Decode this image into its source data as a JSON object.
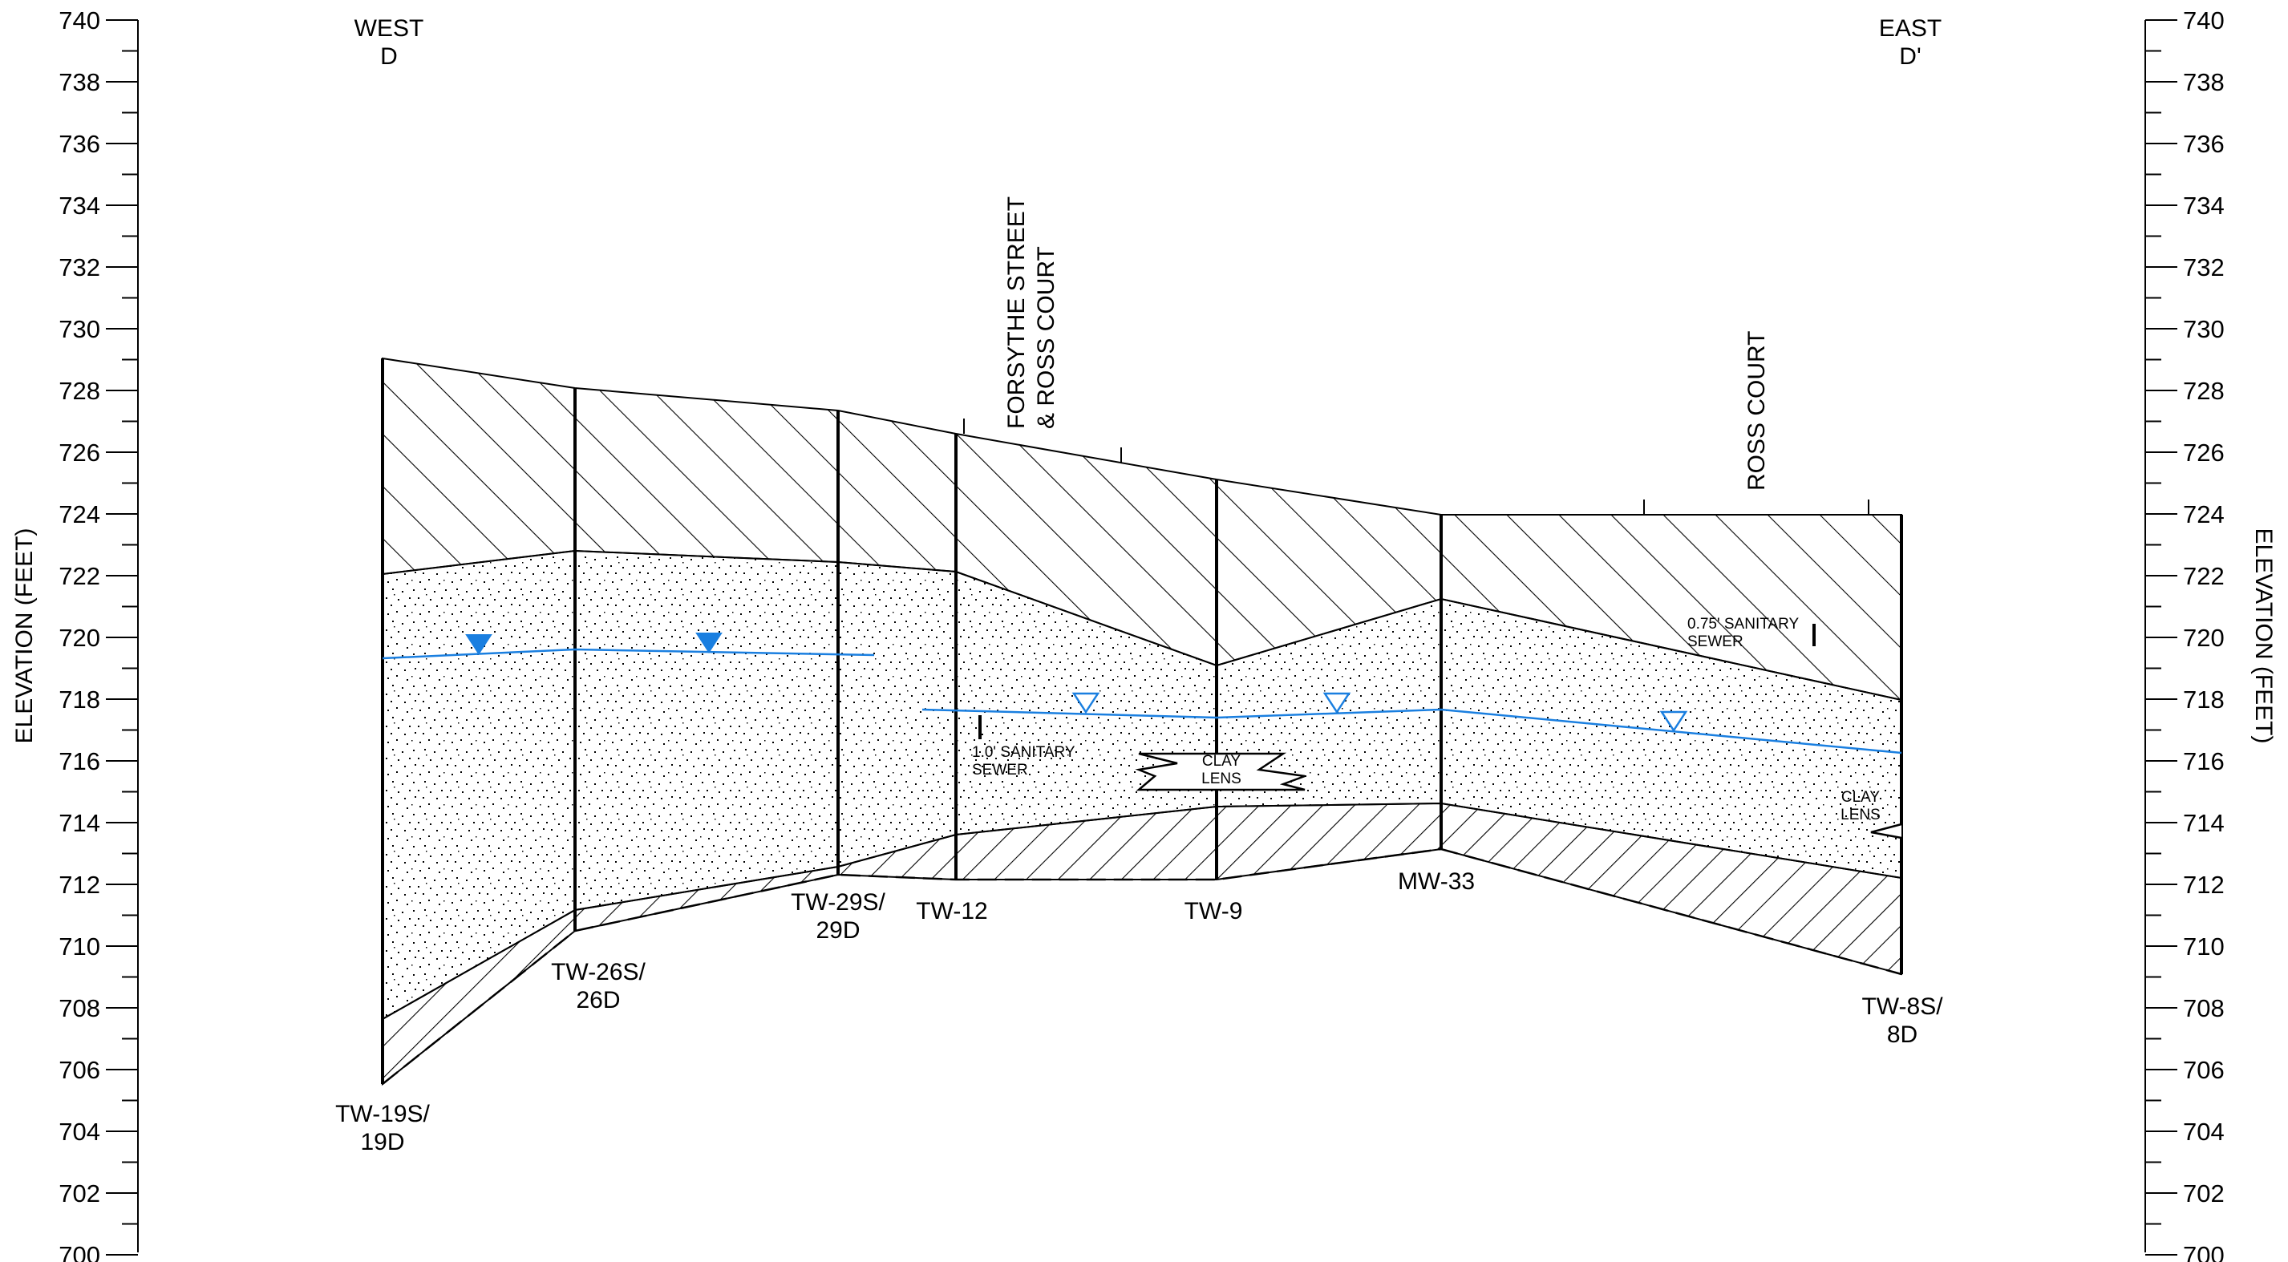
{
  "axis": {
    "ylabel_left": "ELEVATION (FEET)",
    "ylabel_right": "ELEVATION (FEET)",
    "ticks": [
      "740",
      "738",
      "736",
      "734",
      "732",
      "730",
      "728",
      "726",
      "724",
      "722",
      "720",
      "718",
      "716",
      "714",
      "712",
      "710",
      "708",
      "706",
      "704",
      "702",
      "700"
    ]
  },
  "direction": {
    "west": "WEST",
    "west_sub": "D",
    "east": "EAST",
    "east_sub": "D'"
  },
  "streets": {
    "forsythe_line1": "FORSYTHE STREET",
    "forsythe_line2": "& ROSS COURT",
    "ross": "ROSS COURT"
  },
  "wells": {
    "tw19_l1": "TW-19S/",
    "tw19_l2": "19D",
    "tw26_l1": "TW-26S/",
    "tw26_l2": "26D",
    "tw29_l1": "TW-29S/",
    "tw29_l2": "29D",
    "tw12": "TW-12",
    "tw9": "TW-9",
    "mw33": "MW-33",
    "tw8_l1": "TW-8S/",
    "tw8_l2": "8D"
  },
  "annotations": {
    "sewer1_l1": "1.0' SANITARY",
    "sewer1_l2": "SEWER",
    "sewer2_l1": "0.75' SANITARY",
    "sewer2_l2": "SEWER",
    "clay1_l1": "CLAY",
    "clay1_l2": "LENS",
    "clay2_l1": "CLAY",
    "clay2_l2": "LENS"
  }
}
